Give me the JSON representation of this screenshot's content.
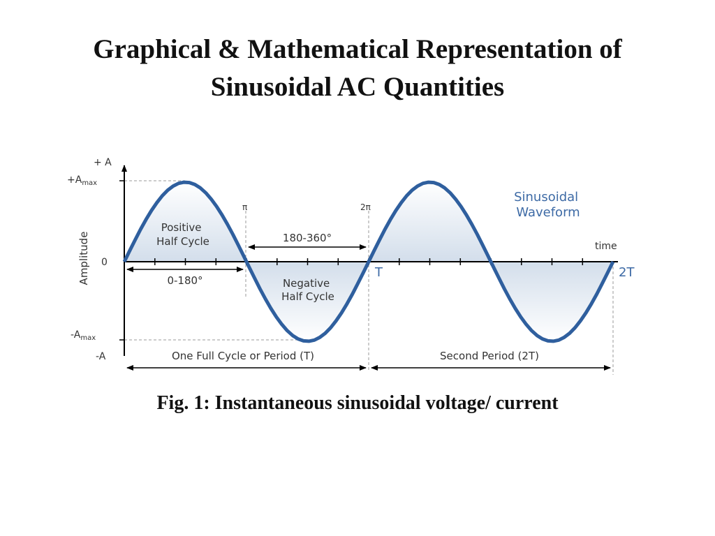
{
  "slide": {
    "title_line1": "Graphical & Mathematical Representation of",
    "title_line2": "Sinusoidal AC Quantities",
    "caption": "Fig. 1: Instantaneous sinusoidal voltage/ current"
  },
  "diagram": {
    "labels": {
      "plus_a": "+ A",
      "plus_amax_base": "+A",
      "amax_sub": "max",
      "minus_amax_base": "-A",
      "minus_a": "-A",
      "zero": "0",
      "y_axis": "Amplitude",
      "time": "time",
      "pi": "π",
      "two_pi": "2π",
      "t": "T",
      "two_t": "2T",
      "positive_line1": "Positive",
      "positive_line2": "Half Cycle",
      "negative_line1": "Negative",
      "negative_line2": "Half Cycle",
      "range_0_180": "0-180°",
      "range_180_360": "180-360°",
      "waveform_line1": "Sinusoidal",
      "waveform_line2": "Waveform",
      "full_cycle": "One Full Cycle or Period (T)",
      "second_period": "Second Period (2T)"
    },
    "colors": {
      "wave": "#2f5f9e",
      "fill": "#dde6f1",
      "axis": "#000000",
      "label": "#333333",
      "waveform_text": "#3d6aa5"
    }
  }
}
